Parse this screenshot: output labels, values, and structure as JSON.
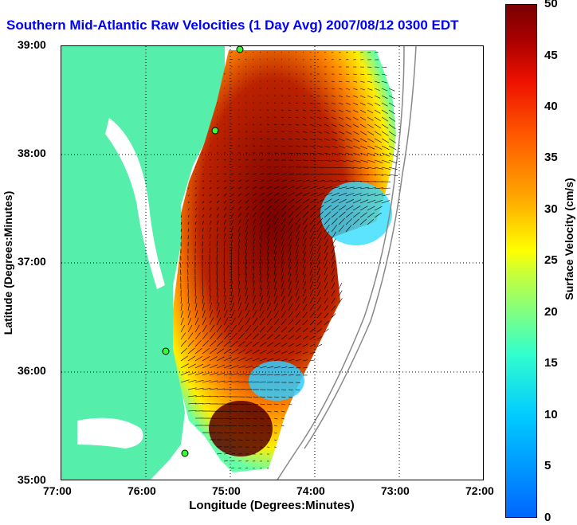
{
  "title": "Southern Mid-Atlantic Raw Velocities (1 Day Avg) 2007/08/12 0300 EDT",
  "axes": {
    "xlabel": "Longitude (Degrees:Minutes)",
    "ylabel": "Latitude (Degrees:Minutes)",
    "xticks": [
      "77:00",
      "76:00",
      "75:00",
      "74:00",
      "73:00",
      "72:00"
    ],
    "yticks": [
      "39:00",
      "38:00",
      "37:00",
      "36:00",
      "35:00"
    ]
  },
  "colorbar": {
    "label": "Surface Velocity (cm/s)",
    "ticks": [
      "50",
      "45",
      "40",
      "35",
      "30",
      "25",
      "20",
      "15",
      "10",
      "5",
      "0"
    ],
    "min": 0,
    "max": 50
  },
  "colors": {
    "land": "#55eeaa",
    "title": "#0000ff",
    "high": "#7a0000",
    "low": "#0066ff"
  }
}
